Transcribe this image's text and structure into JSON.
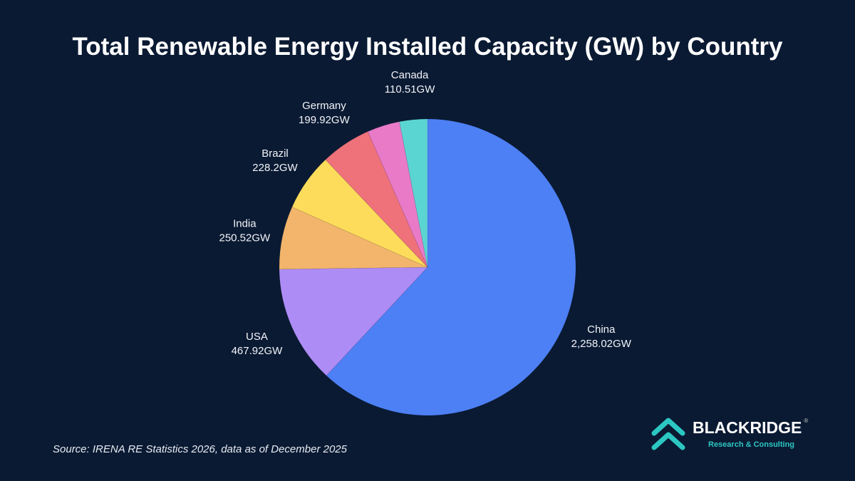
{
  "chart_data": {
    "type": "pie",
    "title": "Total Renewable Energy Installed Capacity (GW) by Country",
    "unit": "GW",
    "start_angle": "top, clockwise",
    "slices": [
      {
        "name": "China",
        "value": 2258.02,
        "label": "2,258.02GW",
        "color": "#4d80f5"
      },
      {
        "name": "USA",
        "value": 467.92,
        "label": "467.92GW",
        "color": "#ae8cf5"
      },
      {
        "name": "India",
        "value": 250.52,
        "label": "250.52GW",
        "color": "#f2b56b"
      },
      {
        "name": "Brazil",
        "value": 228.2,
        "label": "228.2GW",
        "color": "#fddc5c"
      },
      {
        "name": "Germany",
        "value": 199.92,
        "label": "199.92GW",
        "color": "#ef727b"
      },
      {
        "name": "",
        "value": 130,
        "label": "",
        "color": "#e87ac8"
      },
      {
        "name": "Canada",
        "value": 110.51,
        "label": "110.51GW",
        "color": "#5bd5d2"
      }
    ]
  },
  "source": "Source: IRENA RE Statistics 2026, data as of December 2025",
  "logo": {
    "brand": "BLACKRIDGE",
    "tagline": "Research & Consulting",
    "mark": "®",
    "color": "#2cc7c3"
  }
}
